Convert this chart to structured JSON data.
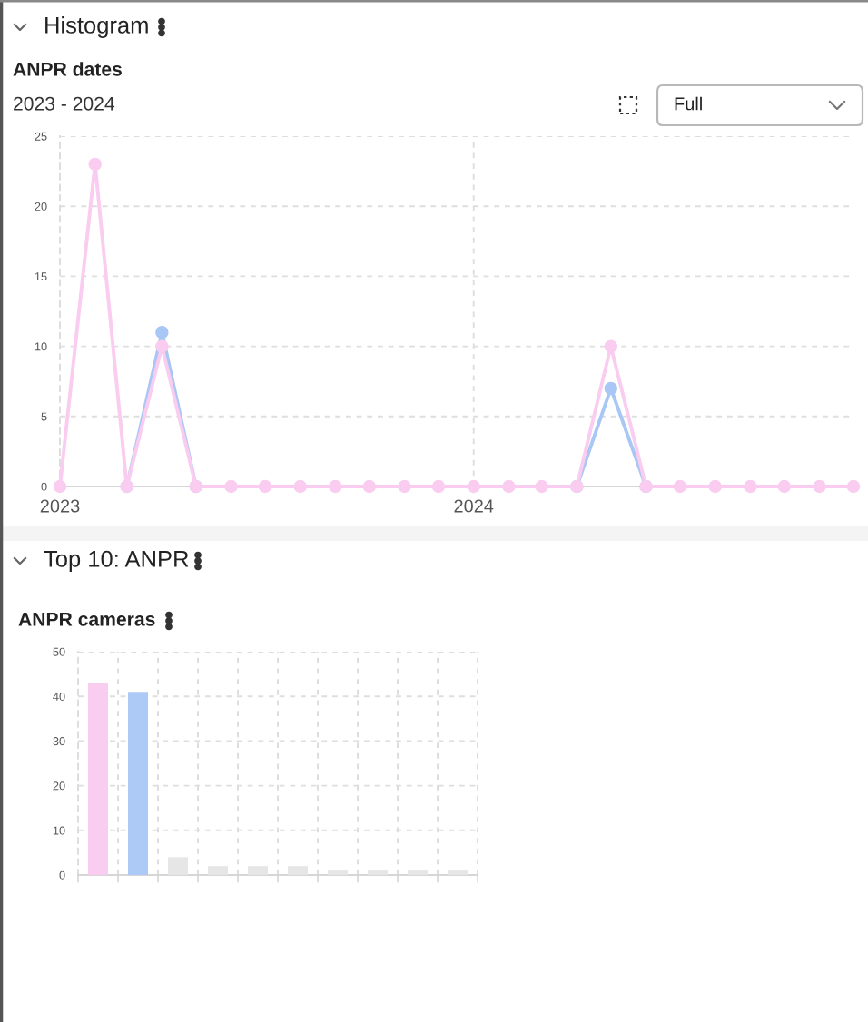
{
  "chart_data": [
    {
      "type": "line",
      "title": "ANPR dates",
      "subtitle": "2023 - 2024",
      "annotations": [
        "Histogram",
        "Full"
      ],
      "x": [
        "2023-01",
        "2023-02",
        "2023-03",
        "2023-04",
        "2023-05",
        "2023-06",
        "2023-07",
        "2023-08",
        "2023-09",
        "2023-10",
        "2023-11",
        "2023-12",
        "2024-01",
        "2024-02",
        "2024-03",
        "2024-04",
        "2024-05",
        "2024-06",
        "2024-07",
        "2024-08",
        "2024-09",
        "2024-10",
        "2024-11",
        "2024-12"
      ],
      "series": [
        {
          "color": "#a9c7f4",
          "values": [
            null,
            null,
            0,
            11,
            0,
            null,
            null,
            null,
            null,
            null,
            null,
            null,
            null,
            null,
            null,
            0,
            7,
            0,
            null,
            null,
            null,
            null,
            null,
            null
          ]
        },
        {
          "color": "#f9ccf0",
          "values": [
            0,
            23,
            0,
            10,
            0,
            0,
            0,
            0,
            0,
            0,
            0,
            0,
            0,
            0,
            0,
            0,
            10,
            0,
            0,
            0,
            0,
            0,
            0,
            0
          ]
        }
      ],
      "xlim": [
        "2023-01",
        "2024-12"
      ],
      "xticks": [
        "2023",
        "2024"
      ],
      "ylim": [
        0,
        25
      ],
      "yticks": [
        0,
        5,
        10,
        15,
        20,
        25
      ],
      "grid": true,
      "marker": "circle",
      "line_style": "solid"
    },
    {
      "type": "bar",
      "title": "ANPR cameras",
      "annotations": [
        "Top 10: ANPR"
      ],
      "categories": [
        null,
        null,
        null,
        null,
        null,
        null,
        null,
        null,
        null,
        null
      ],
      "values": [
        43,
        41,
        4,
        2,
        2,
        2,
        1,
        1,
        1,
        1
      ],
      "colors": [
        "#f8cdef",
        "#adc9f5",
        "#e6e6e6",
        "#e6e6e6",
        "#e6e6e6",
        "#e6e6e6",
        "#e6e6e6",
        "#e6e6e6",
        "#e6e6e6",
        "#e6e6e6"
      ],
      "ylim": [
        0,
        50
      ],
      "yticks": [
        0,
        10,
        20,
        30,
        40,
        50
      ],
      "grid": true,
      "tick_labels": "y"
    }
  ]
}
